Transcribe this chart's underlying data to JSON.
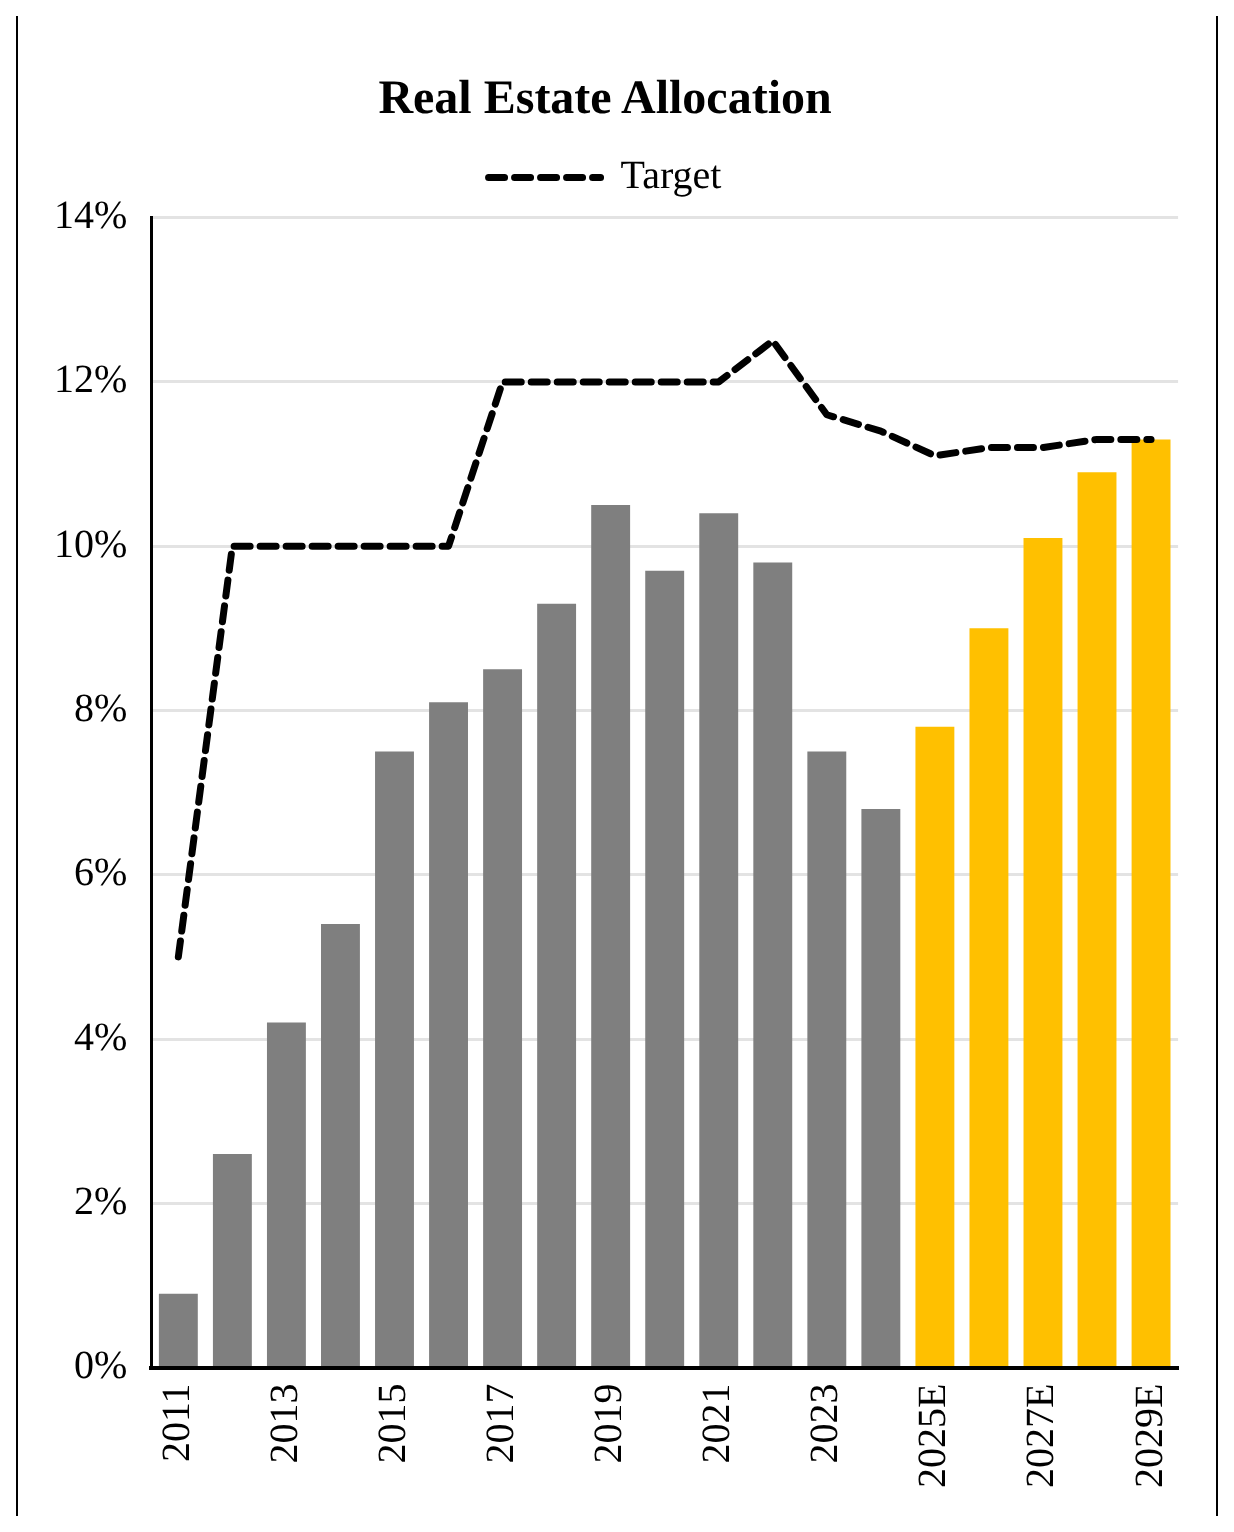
{
  "chart_data": {
    "type": "bar",
    "title": "Real Estate Allocation",
    "categories": [
      "2011",
      null,
      "2013",
      null,
      "2015",
      null,
      "2017",
      null,
      "2019",
      null,
      "2021",
      null,
      "2023",
      null,
      "2025E",
      null,
      "2027E",
      null,
      "2029E"
    ],
    "series": [
      {
        "values": [
          0.9,
          2.6,
          4.2,
          5.4,
          7.5,
          8.1,
          8.5,
          9.3,
          10.5,
          9.7,
          10.4,
          9.8,
          7.5,
          6.8,
          7.8,
          9.0,
          10.1,
          10.9,
          11.3
        ],
        "colors": [
          "#7f7f7f",
          "#7f7f7f",
          "#7f7f7f",
          "#7f7f7f",
          "#7f7f7f",
          "#7f7f7f",
          "#7f7f7f",
          "#7f7f7f",
          "#7f7f7f",
          "#7f7f7f",
          "#7f7f7f",
          "#7f7f7f",
          "#7f7f7f",
          "#7f7f7f",
          "#ffc000",
          "#ffc000",
          "#ffc000",
          "#ffc000",
          "#ffc000"
        ]
      },
      {
        "type": "line",
        "name": "Target",
        "color": "#000000",
        "line_style": "dashed",
        "marker": "none",
        "values": [
          5,
          10,
          10,
          10,
          10,
          10,
          12,
          12,
          12,
          12,
          12,
          12.5,
          11.6,
          11.4,
          11.1,
          11.2,
          11.2,
          11.3,
          11.3
        ]
      }
    ],
    "ylim": [
      0,
      14
    ],
    "yticks": [
      {
        "value": 0,
        "label": "0%"
      },
      {
        "value": 2,
        "label": "2%"
      },
      {
        "value": 4,
        "label": "4%"
      },
      {
        "value": 6,
        "label": "6%"
      },
      {
        "value": 8,
        "label": "8%"
      },
      {
        "value": 10,
        "label": "10%"
      },
      {
        "value": 12,
        "label": "12%"
      },
      {
        "value": 14,
        "label": "14%"
      }
    ],
    "grid": "y",
    "legend": "top"
  }
}
